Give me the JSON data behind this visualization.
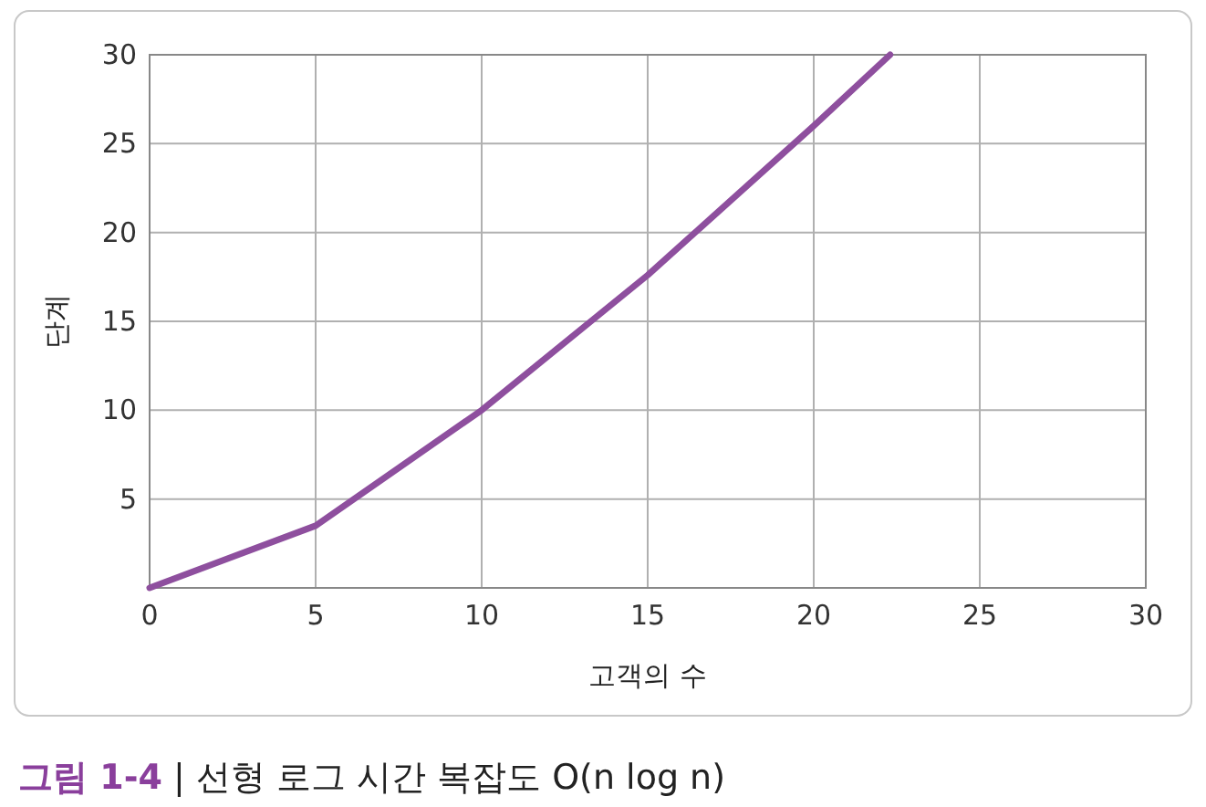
{
  "chart_data": {
    "type": "line",
    "title": "**그림 1-4** | 선형 로그 시간 복잡도 O(n log n)",
    "xlabel": "고객의 수",
    "ylabel": "단계",
    "x": [
      0,
      5,
      10,
      15,
      20,
      22.3
    ],
    "series": [
      {
        "color": "#8e4f9e",
        "values": [
          0,
          3.5,
          10,
          17.6,
          26,
          30
        ]
      }
    ],
    "xlim": [
      0,
      30
    ],
    "ylim": [
      0,
      30
    ],
    "xticks": [
      0,
      5,
      10,
      15,
      20,
      25,
      30
    ],
    "yticks": [
      {
        "value": 0,
        "label": null
      },
      5,
      10,
      15,
      20,
      25,
      30
    ],
    "grid": true,
    "marker": "none",
    "line_style": "solid"
  }
}
